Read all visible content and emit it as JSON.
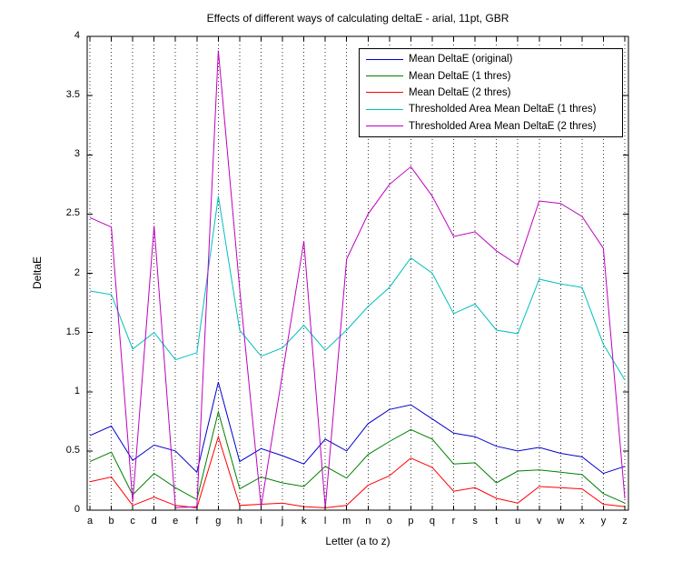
{
  "chart_data": {
    "type": "line",
    "title": "Effects of different ways of calculating deltaE - arial, 11pt, GBR",
    "xlabel": "Letter (a to z)",
    "ylabel": "DeltaE",
    "ylim": [
      0,
      4
    ],
    "yticks": [
      0,
      0.5,
      1,
      1.5,
      2,
      2.5,
      3,
      3.5,
      4
    ],
    "grid": "vertical dotted gridline at every letter, no horizontal gridlines",
    "legend_position": "upper right inside plot",
    "categories": [
      "a",
      "b",
      "c",
      "d",
      "e",
      "f",
      "g",
      "h",
      "i",
      "j",
      "k",
      "l",
      "m",
      "n",
      "o",
      "p",
      "q",
      "r",
      "s",
      "t",
      "u",
      "v",
      "w",
      "x",
      "y",
      "z"
    ],
    "series": [
      {
        "name": "Mean DeltaE (original)",
        "color": "#0000CD",
        "values": [
          0.63,
          0.71,
          0.42,
          0.55,
          0.5,
          0.32,
          1.08,
          0.41,
          0.52,
          0.46,
          0.39,
          0.6,
          0.5,
          0.73,
          0.85,
          0.89,
          0.77,
          0.65,
          0.62,
          0.54,
          0.5,
          0.53,
          0.48,
          0.45,
          0.31,
          0.37
        ]
      },
      {
        "name": "Mean DeltaE (1 thres)",
        "color": "#007F00",
        "values": [
          0.41,
          0.49,
          0.13,
          0.31,
          0.19,
          0.09,
          0.83,
          0.18,
          0.28,
          0.23,
          0.2,
          0.37,
          0.27,
          0.47,
          0.58,
          0.68,
          0.6,
          0.39,
          0.4,
          0.23,
          0.33,
          0.34,
          0.32,
          0.3,
          0.14,
          0.06
        ]
      },
      {
        "name": "Mean DeltaE (2 thres)",
        "color": "#FF0000",
        "values": [
          0.24,
          0.28,
          0.04,
          0.11,
          0.04,
          0.02,
          0.62,
          0.04,
          0.05,
          0.06,
          0.03,
          0.02,
          0.04,
          0.21,
          0.29,
          0.44,
          0.36,
          0.16,
          0.19,
          0.1,
          0.06,
          0.2,
          0.19,
          0.18,
          0.05,
          0.03
        ]
      },
      {
        "name": "Thresholded Area Mean DeltaE (1 thres)",
        "color": "#00BEBE",
        "values": [
          1.85,
          1.82,
          1.36,
          1.5,
          1.27,
          1.33,
          2.65,
          1.52,
          1.3,
          1.37,
          1.56,
          1.35,
          1.52,
          1.72,
          1.88,
          2.13,
          2.0,
          1.66,
          1.74,
          1.52,
          1.49,
          1.95,
          1.91,
          1.88,
          1.4,
          1.1
        ]
      },
      {
        "name": "Thresholded Area Mean DeltaE (2 thres)",
        "color": "#BE00BE",
        "values": [
          2.47,
          2.39,
          0.07,
          2.4,
          0.02,
          0.03,
          3.88,
          1.87,
          0.03,
          1.15,
          2.27,
          0.02,
          2.12,
          2.5,
          2.75,
          2.9,
          2.65,
          2.31,
          2.35,
          2.19,
          2.07,
          2.61,
          2.59,
          2.48,
          2.21,
          0.1
        ]
      }
    ]
  }
}
